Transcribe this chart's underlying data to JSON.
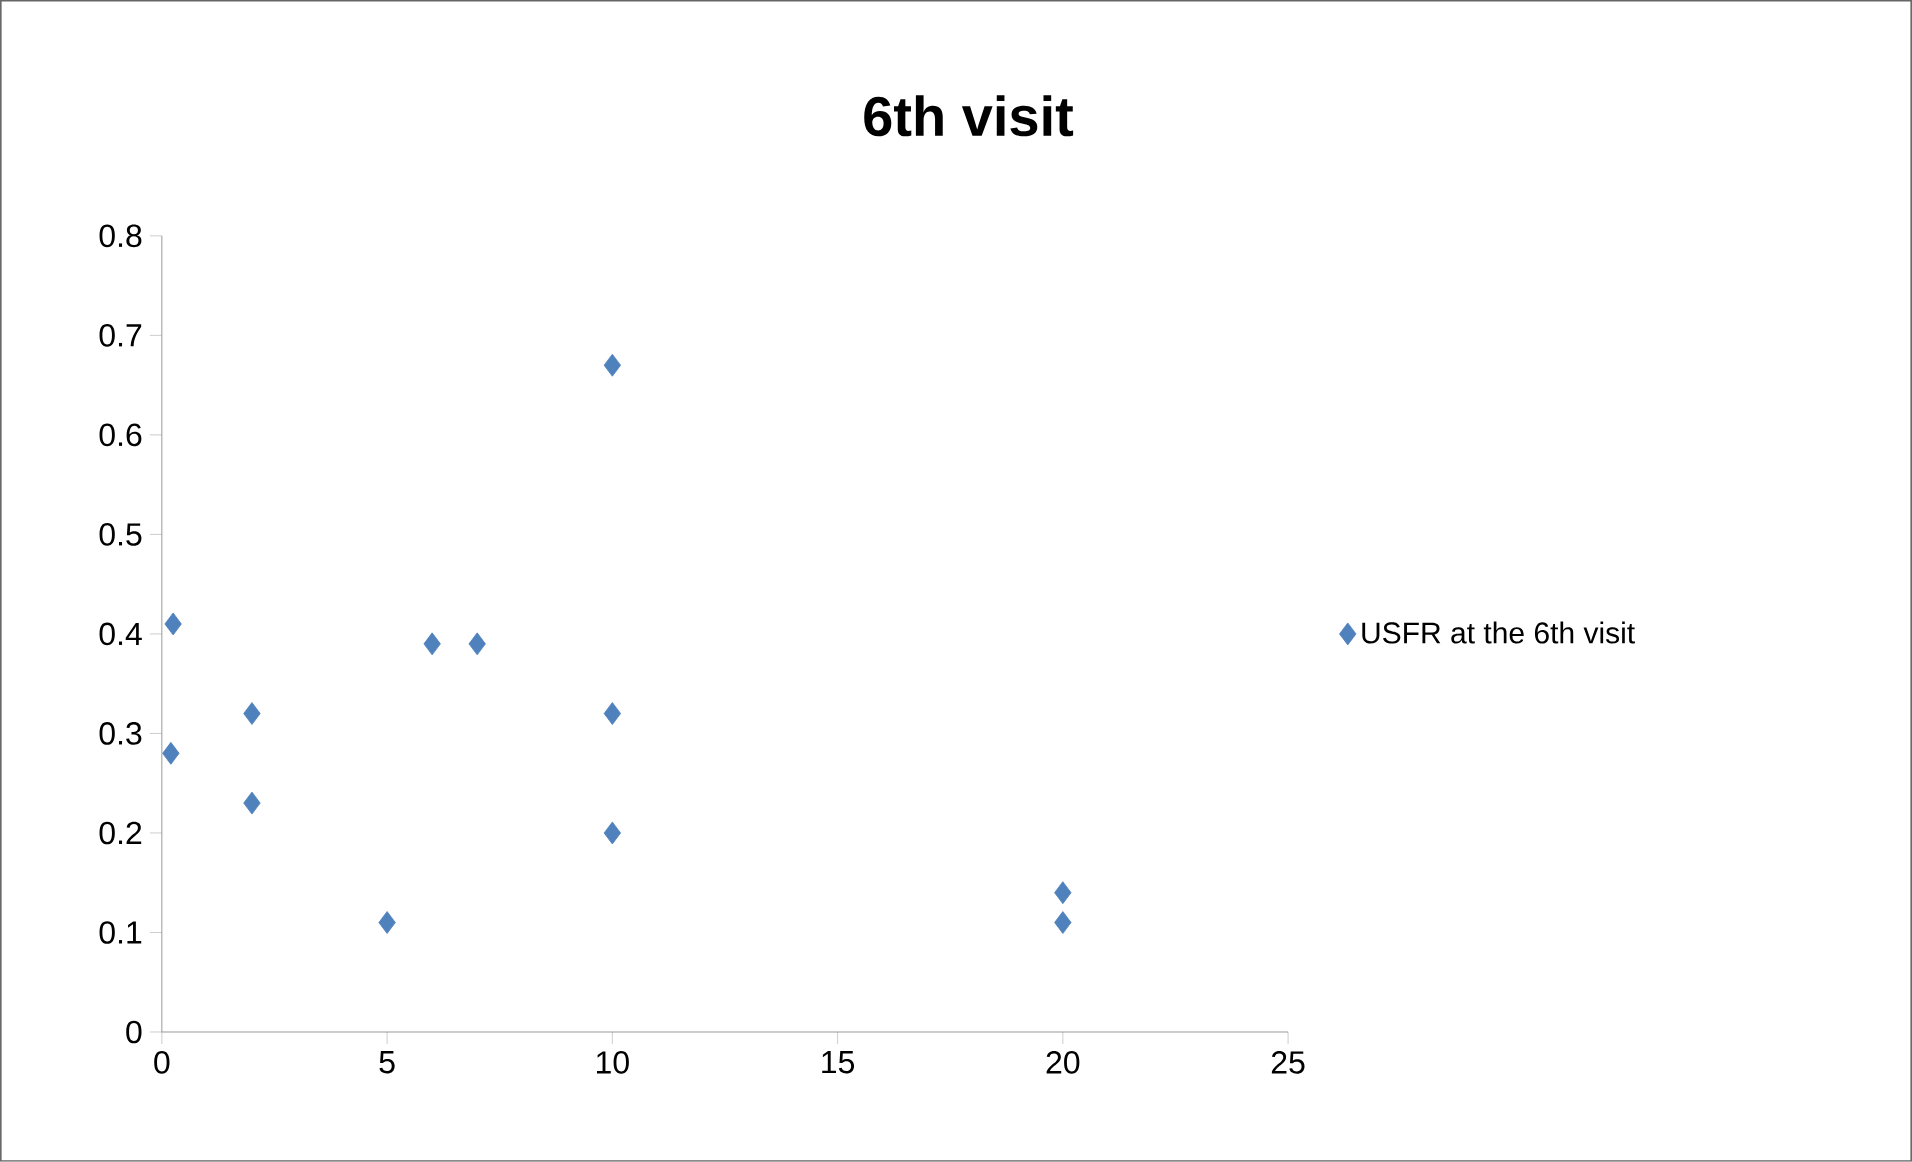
{
  "chart_data": {
    "type": "scatter",
    "title": "6th visit",
    "x": [
      0.25,
      0.2,
      2,
      2,
      5,
      6,
      7,
      10,
      10,
      10,
      20,
      20
    ],
    "series": [
      {
        "name": "USFR at the 6th visit",
        "color": "#4f81bd",
        "values": [
          0.41,
          0.28,
          0.32,
          0.23,
          0.11,
          0.39,
          0.39,
          0.67,
          0.32,
          0.2,
          0.14,
          0.11
        ]
      }
    ],
    "xlim": [
      0,
      25
    ],
    "xticks": [
      0,
      5,
      10,
      15,
      20,
      25
    ],
    "ylim": [
      0,
      0.8
    ],
    "yticks": [
      0,
      0.1,
      0.2,
      0.3,
      0.4,
      0.5,
      0.6,
      0.7,
      0.8
    ],
    "marker": "diamond",
    "legend": "right",
    "grid": false
  }
}
